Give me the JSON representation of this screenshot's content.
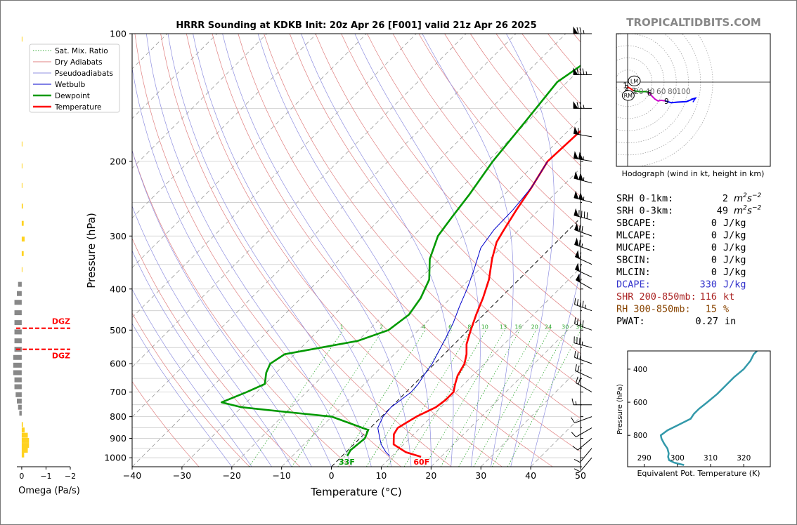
{
  "title": "HRRR Sounding at KDKB Init: 20z Apr 26 [F001] valid 21z Apr 26 2025",
  "watermark": "TROPICALTIDBITS.COM",
  "colors": {
    "temperature": "#ff0000",
    "dewpoint": "#009900",
    "wetbulb": "#0000cc",
    "dry_adiabat": "#e08080",
    "pseudoadiabat": "#9090e0",
    "mixing_ratio": "#33aa33",
    "hodo_0_3": "#ff0000",
    "hodo_3_6": "#009900",
    "hodo_6_9": "#cc00cc",
    "hodo_9_12": "#0000ff",
    "theta_e": "#3399aa",
    "omega_up": "#ffd21f",
    "omega_down": "#888888",
    "dgz": "#ff0000",
    "dcape": "#3333cc",
    "shr": "#aa2222",
    "rh": "#884400"
  },
  "legend": [
    {
      "label": "Sat. Mix. Ratio",
      "style": "mixing_ratio"
    },
    {
      "label": "Dry Adiabats",
      "style": "dry_adiabat"
    },
    {
      "label": "Pseudoadiabats",
      "style": "pseudoadiabat"
    },
    {
      "label": "Wetbulb",
      "style": "wetbulb"
    },
    {
      "label": "Dewpoint",
      "style": "dewpoint"
    },
    {
      "label": "Temperature",
      "style": "temperature"
    }
  ],
  "chart_data": [
    {
      "type": "line",
      "subtype": "skew-t",
      "title": "HRRR Sounding at KDKB Init: 20z Apr 26 [F001] valid 21z Apr 26 2025",
      "xlabel": "Temperature (°C)",
      "ylabel": "Pressure (hPa)",
      "xlim": [
        -40,
        50
      ],
      "ylim": [
        1050,
        100
      ],
      "y_log": true,
      "x_ticks": [
        -40,
        -30,
        -20,
        -10,
        0,
        10,
        20,
        30,
        40,
        50
      ],
      "y_ticks": [
        100,
        200,
        300,
        400,
        500,
        600,
        700,
        800,
        900,
        1000
      ],
      "mixing_ratio_labels": [
        "1",
        "2",
        "4",
        "6",
        "8",
        "10",
        "13",
        "16",
        "20",
        "24",
        "30",
        "36"
      ],
      "series": [
        {
          "name": "Temperature",
          "points": [
            [
              995,
              16
            ],
            [
              970,
              12
            ],
            [
              930,
              8
            ],
            [
              880,
              6
            ],
            [
              850,
              5.5
            ],
            [
              800,
              7
            ],
            [
              760,
              9
            ],
            [
              730,
              9.5
            ],
            [
              700,
              9.5
            ],
            [
              670,
              8.2
            ],
            [
              640,
              7
            ],
            [
              600,
              6
            ],
            [
              570,
              4.5
            ],
            [
              540,
              2.5
            ],
            [
              500,
              0.5
            ],
            [
              460,
              -1.5
            ],
            [
              420,
              -3.5
            ],
            [
              380,
              -6
            ],
            [
              340,
              -9.5
            ],
            [
              310,
              -12
            ],
            [
              290,
              -13
            ],
            [
              260,
              -14.5
            ],
            [
              230,
              -16
            ],
            [
              200,
              -18
            ],
            [
              170,
              -17.5
            ],
            [
              150,
              -14.5
            ],
            [
              130,
              -12
            ],
            [
              115,
              -9.5
            ],
            [
              100,
              -7.5
            ]
          ]
        },
        {
          "name": "Dewpoint",
          "points": [
            [
              990,
              1
            ],
            [
              960,
              0.5
            ],
            [
              900,
              1
            ],
            [
              860,
              0
            ],
            [
              800,
              -10
            ],
            [
              780,
              -20
            ],
            [
              760,
              -30
            ],
            [
              740,
              -35
            ],
            [
              700,
              -32
            ],
            [
              670,
              -30
            ],
            [
              630,
              -32
            ],
            [
              600,
              -33
            ],
            [
              570,
              -32
            ],
            [
              530,
              -20
            ],
            [
              500,
              -16
            ],
            [
              460,
              -15
            ],
            [
              420,
              -16
            ],
            [
              380,
              -18
            ],
            [
              340,
              -22
            ],
            [
              300,
              -25
            ],
            [
              270,
              -26
            ],
            [
              240,
              -27
            ],
            [
              200,
              -29
            ],
            [
              160,
              -30.5
            ],
            [
              130,
              -32
            ],
            [
              115,
              -30
            ],
            [
              100,
              -25
            ]
          ]
        },
        {
          "name": "Wetbulb",
          "points": [
            [
              990,
              9.5
            ],
            [
              970,
              8
            ],
            [
              930,
              5.5
            ],
            [
              900,
              4
            ],
            [
              850,
              1.5
            ],
            [
              800,
              0.3
            ],
            [
              760,
              0
            ],
            [
              730,
              0.5
            ],
            [
              700,
              1
            ],
            [
              670,
              0.8
            ],
            [
              640,
              0.2
            ],
            [
              600,
              -0.5
            ],
            [
              560,
              -1.7
            ],
            [
              520,
              -3
            ],
            [
              480,
              -4.5
            ],
            [
              440,
              -6.5
            ],
            [
              400,
              -8.5
            ],
            [
              360,
              -11
            ],
            [
              320,
              -14
            ],
            [
              290,
              -15
            ],
            [
              260,
              -15.2
            ],
            [
              230,
              -16
            ],
            [
              200,
              -18
            ]
          ]
        }
      ],
      "annotations": [
        {
          "text": "33F",
          "p": 1000,
          "t": 1,
          "color": "dewpoint"
        },
        {
          "text": "60F",
          "p": 1000,
          "t": 16,
          "color": "temperature"
        }
      ],
      "wind_barbs": [
        {
          "p": 100,
          "dir": 270,
          "spd": 75
        },
        {
          "p": 125,
          "dir": 270,
          "spd": 85
        },
        {
          "p": 150,
          "dir": 270,
          "spd": 75
        },
        {
          "p": 175,
          "dir": 280,
          "spd": 60
        },
        {
          "p": 200,
          "dir": 280,
          "spd": 105
        },
        {
          "p": 225,
          "dir": 285,
          "spd": 105
        },
        {
          "p": 250,
          "dir": 285,
          "spd": 105
        },
        {
          "p": 275,
          "dir": 285,
          "spd": 90
        },
        {
          "p": 300,
          "dir": 290,
          "spd": 70
        },
        {
          "p": 325,
          "dir": 290,
          "spd": 65
        },
        {
          "p": 350,
          "dir": 295,
          "spd": 60
        },
        {
          "p": 375,
          "dir": 295,
          "spd": 60
        },
        {
          "p": 400,
          "dir": 300,
          "spd": 55
        },
        {
          "p": 450,
          "dir": 290,
          "spd": 45
        },
        {
          "p": 500,
          "dir": 290,
          "spd": 40
        },
        {
          "p": 550,
          "dir": 285,
          "spd": 35
        },
        {
          "p": 600,
          "dir": 290,
          "spd": 30
        },
        {
          "p": 650,
          "dir": 295,
          "spd": 25
        },
        {
          "p": 700,
          "dir": 300,
          "spd": 20
        },
        {
          "p": 750,
          "dir": 270,
          "spd": 15
        },
        {
          "p": 800,
          "dir": 250,
          "spd": 10
        },
        {
          "p": 850,
          "dir": 240,
          "spd": 10
        },
        {
          "p": 900,
          "dir": 230,
          "spd": 10
        },
        {
          "p": 950,
          "dir": 220,
          "spd": 10
        },
        {
          "p": 1000,
          "dir": 220,
          "spd": 10
        }
      ]
    },
    {
      "type": "bar",
      "subtype": "omega",
      "xlabel": "Omega (Pa/s)",
      "xlim": [
        0.2,
        -2
      ],
      "x_ticks": [
        0,
        -1,
        -2
      ],
      "dgz_label": "DGZ",
      "dgz_levels": [
        495,
        555
      ],
      "bars": [
        {
          "p": 985,
          "v": -0.1
        },
        {
          "p": 960,
          "v": -0.25
        },
        {
          "p": 935,
          "v": -0.3
        },
        {
          "p": 910,
          "v": -0.3
        },
        {
          "p": 885,
          "v": -0.25
        },
        {
          "p": 860,
          "v": -0.12
        },
        {
          "p": 835,
          "v": -0.05
        },
        {
          "p": 785,
          "v": 0.1
        },
        {
          "p": 760,
          "v": 0.15
        },
        {
          "p": 735,
          "v": 0.2
        },
        {
          "p": 710,
          "v": 0.25
        },
        {
          "p": 680,
          "v": 0.3
        },
        {
          "p": 655,
          "v": 0.3
        },
        {
          "p": 630,
          "v": 0.35
        },
        {
          "p": 605,
          "v": 0.35
        },
        {
          "p": 580,
          "v": 0.35
        },
        {
          "p": 555,
          "v": 0.3
        },
        {
          "p": 530,
          "v": 0.3
        },
        {
          "p": 505,
          "v": 0.3
        },
        {
          "p": 480,
          "v": 0.3
        },
        {
          "p": 455,
          "v": 0.3
        },
        {
          "p": 430,
          "v": 0.3
        },
        {
          "p": 410,
          "v": 0.2
        },
        {
          "p": 390,
          "v": 0.15
        },
        {
          "p": 360,
          "v": -0.03
        },
        {
          "p": 330,
          "v": -0.08
        },
        {
          "p": 305,
          "v": -0.12
        },
        {
          "p": 280,
          "v": -0.08
        },
        {
          "p": 255,
          "v": -0.05
        },
        {
          "p": 228,
          "v": -0.03
        },
        {
          "p": 205,
          "v": -0.02
        },
        {
          "p": 182,
          "v": -0.02
        },
        {
          "p": 103,
          "v": -0.01
        }
      ]
    },
    {
      "type": "line",
      "subtype": "hodograph",
      "xlabel": "Hodograph (wind in kt, height in km)",
      "ring_labels": [
        "20",
        "40",
        "60",
        "80",
        "100"
      ],
      "storm_motion": [
        {
          "label": "LM",
          "u": 11,
          "v": 2
        },
        {
          "label": "RM",
          "u": 1,
          "v": -22
        }
      ],
      "height_labels": [
        {
          "label": "1",
          "u": -4,
          "v": -5
        },
        {
          "label": "2",
          "u": -1,
          "v": -9
        },
        {
          "label": "3",
          "u": 10,
          "v": -14
        },
        {
          "label": "6",
          "u": 36,
          "v": -18
        },
        {
          "label": "9",
          "u": 64,
          "v": -31
        }
      ],
      "segments": [
        {
          "name": "0-3 km",
          "color": "hodo_0_3",
          "points": [
            [
              -1,
              -8
            ],
            [
              4,
              -10
            ],
            [
              8,
              -13
            ],
            [
              10,
              -14
            ]
          ]
        },
        {
          "name": "3-6 km",
          "color": "hodo_3_6",
          "points": [
            [
              10,
              -14
            ],
            [
              15,
              -15
            ],
            [
              22,
              -16
            ],
            [
              30,
              -15.5
            ],
            [
              35,
              -17
            ]
          ]
        },
        {
          "name": "6-9 km",
          "color": "hodo_6_9",
          "points": [
            [
              35,
              -17
            ],
            [
              40,
              -23
            ],
            [
              45,
              -28
            ],
            [
              50,
              -31
            ],
            [
              55,
              -30
            ],
            [
              62,
              -31
            ]
          ]
        },
        {
          "name": "9-12 km",
          "color": "hodo_9_12",
          "points": [
            [
              62,
              -31
            ],
            [
              72,
              -34
            ],
            [
              82,
              -33
            ],
            [
              97,
              -32
            ],
            [
              112,
              -26
            ]
          ]
        }
      ]
    },
    {
      "type": "line",
      "subtype": "theta-e",
      "xlabel": "Equivalent Pot. Temperature (K)",
      "ylabel": "Pressure (hPa)",
      "xlim": [
        285,
        328
      ],
      "ylim": [
        990,
        290
      ],
      "x_ticks": [
        290,
        300,
        310,
        320
      ],
      "y_ticks": [
        400,
        600,
        800
      ],
      "series": [
        {
          "name": "Theta-E",
          "points": [
            [
              980,
              302
            ],
            [
              965,
              299
            ],
            [
              950,
              297.5
            ],
            [
              930,
              297.2
            ],
            [
              910,
              297.4
            ],
            [
              880,
              297
            ],
            [
              850,
              296
            ],
            [
              820,
              295.2
            ],
            [
              800,
              295
            ],
            [
              770,
              297
            ],
            [
              740,
              300
            ],
            [
              700,
              304
            ],
            [
              670,
              305
            ],
            [
              640,
              306.5
            ],
            [
              600,
              309
            ],
            [
              550,
              312
            ],
            [
              500,
              314.5
            ],
            [
              450,
              317
            ],
            [
              400,
              320
            ],
            [
              350,
              322
            ],
            [
              310,
              323
            ],
            [
              290,
              324
            ]
          ]
        }
      ]
    }
  ],
  "indices": [
    {
      "label": "SRH 0-1km:",
      "value": "2",
      "unit": "m2s-2",
      "color": "#000000"
    },
    {
      "label": "SRH 0-3km:",
      "value": "49",
      "unit": "m2s-2",
      "color": "#000000"
    },
    {
      "label": "SBCAPE:",
      "value": "0",
      "unit": "J/kg",
      "color": "#000000"
    },
    {
      "label": "MLCAPE:",
      "value": "0",
      "unit": "J/kg",
      "color": "#000000"
    },
    {
      "label": "MUCAPE:",
      "value": "0",
      "unit": "J/kg",
      "color": "#000000"
    },
    {
      "label": "SBCIN:",
      "value": "0",
      "unit": "J/kg",
      "color": "#000000"
    },
    {
      "label": "MLCIN:",
      "value": "0",
      "unit": "J/kg",
      "color": "#000000"
    },
    {
      "label": "DCAPE:",
      "value": "330",
      "unit": "J/kg",
      "color": "#3333cc"
    },
    {
      "label": "SHR 200-850mb:",
      "value": "116",
      "unit": "kt",
      "color": "#aa2222"
    },
    {
      "label": "RH 300-850mb:",
      "value": "15",
      "unit": "%",
      "color": "#884400"
    },
    {
      "label": "PWAT:",
      "value": "0.27",
      "unit": "in",
      "color": "#000000"
    }
  ]
}
